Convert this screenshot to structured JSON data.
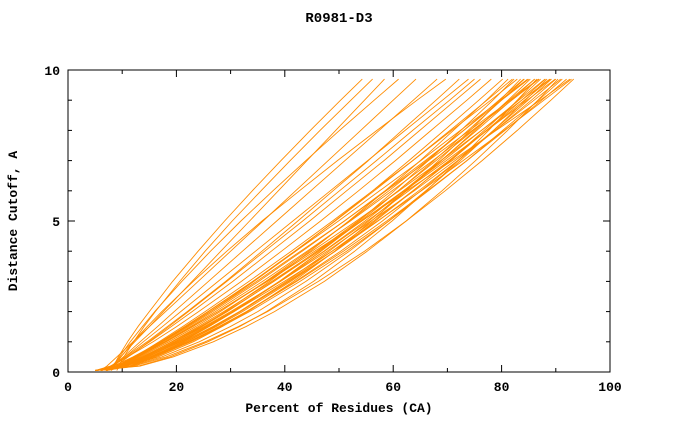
{
  "figure": {
    "background": "#ffffff"
  },
  "chart_data": {
    "type": "line",
    "title": "R0981-D3",
    "xlabel": "Percent of Residues (CA)",
    "ylabel": "Distance Cutoff, A",
    "xlim": [
      0,
      100
    ],
    "ylim": [
      0,
      10
    ],
    "x_ticks": [
      0,
      20,
      40,
      60,
      80,
      100
    ],
    "x_minor_ticks": [
      10,
      30,
      50,
      70,
      90
    ],
    "y_ticks": [
      0,
      5,
      10
    ],
    "y_minor_ticks": [
      1,
      2,
      3,
      4,
      6,
      7,
      8,
      9
    ],
    "grid": false,
    "legend": "none",
    "curve_color": "#ff8c00",
    "axis_color": "#000000",
    "y_levels": [
      0.05,
      0.2,
      0.5,
      1,
      1.5,
      2,
      3,
      4,
      5,
      6,
      7,
      8,
      9,
      9.7
    ],
    "curves": [
      [
        8,
        8.4,
        9.3,
        11,
        12.9,
        15,
        19.3,
        24,
        28.9,
        34,
        39.3,
        44.7,
        50.3,
        54.3
      ],
      [
        7,
        8.1,
        9.7,
        12.3,
        15,
        17.6,
        22.9,
        28.2,
        33.5,
        38.8,
        44.1,
        49.4,
        54.7,
        58.4
      ],
      [
        8,
        8.5,
        9.5,
        11.5,
        13.7,
        16,
        21,
        26.3,
        31.9,
        37.8,
        43.9,
        50.1,
        56.5,
        61
      ],
      [
        6,
        7.2,
        9,
        12,
        15,
        18,
        24,
        30,
        36,
        42,
        48,
        54,
        60,
        64.2
      ],
      [
        7,
        8.3,
        10.2,
        13.3,
        16.5,
        19.6,
        25.9,
        32.2,
        38.5,
        44.8,
        51.1,
        57.4,
        63.7,
        68.1
      ],
      [
        9,
        9.4,
        10.3,
        12.1,
        14,
        16.1,
        20.6,
        25.3,
        30.3,
        35.6,
        41,
        46.5,
        52.2,
        56.2
      ],
      [
        6,
        8,
        10.6,
        14.6,
        18.3,
        22,
        29.1,
        35.8,
        42.4,
        48.9,
        55.4,
        61.6,
        67.9,
        72.2
      ],
      [
        7,
        8.4,
        10.5,
        13.9,
        17.4,
        20.8,
        27.7,
        34.6,
        41.5,
        48.4,
        55.3,
        62.2,
        69.1,
        73.9
      ],
      [
        6,
        8.2,
        10.9,
        15.1,
        19,
        22.9,
        30.4,
        37.5,
        44.6,
        51.4,
        58.3,
        64.9,
        71.5,
        76.1
      ],
      [
        8,
        8.6,
        9.8,
        12,
        14.6,
        17.3,
        23.1,
        29.3,
        35.8,
        42.7,
        49.7,
        57,
        64.4,
        69.7
      ],
      [
        5,
        7.8,
        11,
        15.7,
        20,
        24.1,
        32,
        39.4,
        46.6,
        53.6,
        60.4,
        67,
        73.6,
        78.1
      ],
      [
        7,
        8.8,
        11.1,
        14.9,
        18.6,
        22.2,
        29.3,
        36.3,
        43.3,
        50.1,
        56.9,
        63.6,
        70.4,
        75
      ],
      [
        5,
        8.4,
        12,
        17.2,
        21.9,
        26.3,
        34.3,
        42,
        49.2,
        56.2,
        62.9,
        69.4,
        75.8,
        80.2
      ],
      [
        6,
        10.2,
        14.2,
        19.7,
        24.6,
        29,
        37.2,
        44.7,
        51.8,
        58.5,
        65,
        71.1,
        77.2,
        81.2
      ],
      [
        5,
        10.1,
        14.7,
        20.8,
        25.9,
        30.6,
        39,
        46.6,
        53.7,
        60.2,
        66.5,
        72.5,
        78.4,
        82.3
      ],
      [
        6,
        8.9,
        12.2,
        17.1,
        21.6,
        25.9,
        34.1,
        41.8,
        49.3,
        56.5,
        63.6,
        70.5,
        77.3,
        82
      ],
      [
        7,
        9.3,
        12.3,
        16.8,
        21.1,
        25.3,
        33.4,
        41.2,
        48.8,
        56.2,
        63.6,
        70.8,
        78,
        82.9
      ],
      [
        5,
        11.4,
        16.6,
        23.1,
        28.4,
        33.2,
        41.6,
        49.2,
        56,
        62.4,
        68.4,
        74.2,
        79.7,
        83.5
      ],
      [
        6,
        9.5,
        13.3,
        18.6,
        23.5,
        28.1,
        36.5,
        44.4,
        51.9,
        59.2,
        66.2,
        73,
        79.5,
        84.1
      ],
      [
        7,
        11.3,
        15.4,
        21.1,
        26,
        30.6,
        39,
        46.7,
        54,
        60.9,
        67.5,
        73.8,
        80,
        84.2
      ],
      [
        5,
        10.3,
        15.1,
        21.4,
        26.7,
        31.6,
        40.3,
        48.2,
        55.5,
        62.3,
        68.9,
        75.1,
        81.2,
        85.3
      ],
      [
        6,
        9,
        12.5,
        17.5,
        22.2,
        26.7,
        35.2,
        43.2,
        51,
        58.5,
        65.9,
        73,
        80,
        85
      ],
      [
        7,
        9.4,
        12.4,
        17.1,
        21.5,
        25.8,
        34.1,
        42,
        49.9,
        57.5,
        65.1,
        72.4,
        79.8,
        84.8
      ],
      [
        5,
        13,
        18.8,
        25.8,
        31.6,
        36.6,
        45.3,
        52.9,
        59.8,
        66.1,
        72,
        77.6,
        82.9,
        86.5
      ],
      [
        6,
        10.4,
        14.7,
        20.6,
        25.8,
        30.5,
        39.2,
        47.2,
        54.8,
        61.9,
        68.8,
        75.4,
        81.8,
        86.1
      ],
      [
        7,
        10.6,
        14.4,
        19.8,
        24.7,
        29.4,
        37.9,
        45.9,
        53.5,
        60.9,
        67.9,
        74.8,
        81.4,
        86.1
      ],
      [
        5,
        10.5,
        15.3,
        21.8,
        27.3,
        32.2,
        41.1,
        49.3,
        56.7,
        63.7,
        70.4,
        76.8,
        83,
        87.2
      ],
      [
        6,
        9.1,
        12.6,
        17.8,
        22.6,
        27.2,
        35.9,
        44.1,
        52.1,
        59.8,
        67.3,
        74.6,
        81.9,
        86.9
      ],
      [
        7,
        9.5,
        12.6,
        17.3,
        21.8,
        26.3,
        34.8,
        42.9,
        51,
        58.7,
        66.5,
        74.1,
        81.6,
        86.8
      ],
      [
        5,
        11.8,
        17.3,
        24.2,
        29.9,
        35,
        43.9,
        51.9,
        59.2,
        66,
        72.4,
        78.5,
        84.4,
        88.4
      ],
      [
        6,
        9.7,
        13.6,
        19.3,
        24.4,
        29.2,
        38,
        46.3,
        54.2,
        61.9,
        69.3,
        76.3,
        83.2,
        88
      ],
      [
        7,
        11.5,
        15.8,
        21.8,
        27,
        31.8,
        40.6,
        48.7,
        56.4,
        63.6,
        70.6,
        77.2,
        83.7,
        88.1
      ],
      [
        5,
        10.6,
        15.6,
        22.2,
        27.8,
        32.9,
        42,
        50.3,
        58,
        65.1,
        72,
        78.5,
        84.9,
        89.2
      ],
      [
        6,
        9.1,
        12.8,
        18.1,
        23,
        27.7,
        36.6,
        45,
        53.2,
        61.1,
        68.8,
        76.3,
        83.7,
        88.9
      ],
      [
        7,
        10.7,
        14.6,
        20.3,
        25.4,
        30.3,
        39,
        47.3,
        55.2,
        62.9,
        70.3,
        77.3,
        84.2,
        89
      ],
      [
        5,
        13.4,
        19.4,
        26.8,
        32.8,
        38.1,
        47.3,
        55.2,
        62.4,
        69,
        75.2,
        81.1,
        86.7,
        90.4
      ],
      [
        6,
        10.6,
        15.1,
        21.3,
        26.7,
        31.7,
        40.8,
        49.3,
        57.2,
        64.7,
        71.9,
        78.8,
        85.5,
        90
      ],
      [
        7,
        10.1,
        13.8,
        19.1,
        24,
        28.7,
        37.6,
        46,
        54.2,
        62.1,
        69.8,
        77.3,
        84.7,
        89.9
      ],
      [
        5,
        10.7,
        15.8,
        22.6,
        28.3,
        33.5,
        42.8,
        51.4,
        59.2,
        66.5,
        73.6,
        80.2,
        86.8,
        91.2
      ],
      [
        6,
        9.8,
        13.9,
        19.7,
        25.1,
        30,
        39.2,
        47.8,
        55.9,
        63.9,
        71.4,
        78.8,
        86,
        90.9
      ],
      [
        7,
        11.7,
        16.2,
        22.5,
        28,
        33,
        42.2,
        50.8,
        58.8,
        66.3,
        73.6,
        80.6,
        87.4,
        92
      ],
      [
        6,
        9.9,
        14.1,
        20.1,
        25.5,
        30.6,
        39.9,
        48.7,
        57.1,
        65.2,
        72.9,
        80.5,
        87.8,
        92.9
      ],
      [
        5,
        12.2,
        18.1,
        25.3,
        31.4,
        36.8,
        46.2,
        54.7,
        62.4,
        69.6,
        76.4,
        82.9,
        89.1,
        93.3
      ],
      [
        7,
        9.6,
        13,
        18.1,
        22.9,
        27.7,
        36.8,
        45.5,
        54.2,
        62.5,
        70.9,
        79,
        87.1,
        92.6
      ]
    ]
  }
}
